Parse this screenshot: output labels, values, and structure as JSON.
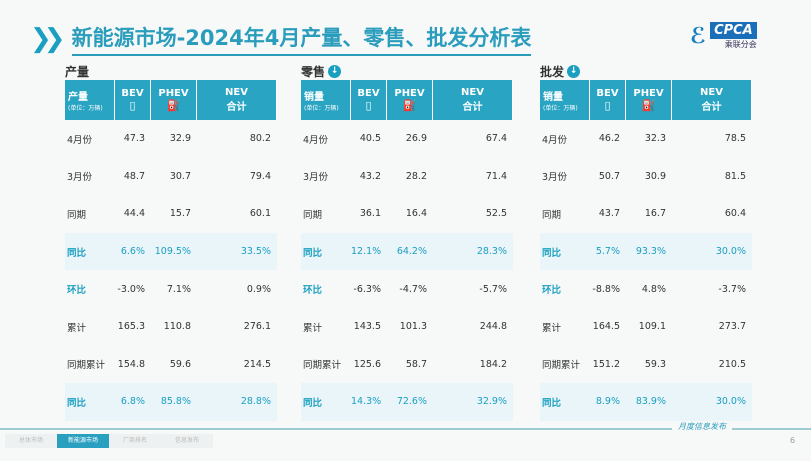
{
  "title": "新能源市场-2024年4月产量、零售、批发分析表",
  "logo": {
    "text": "CPCA",
    "sub": "乘联分会"
  },
  "tables": [
    {
      "title": "产量",
      "has_icon": false,
      "corner": "产量",
      "unit": "(单位：万辆)",
      "cols": [
        "BEV",
        "PHEV",
        "NEV"
      ],
      "nev_sub": "合计",
      "rows": [
        [
          "4月份",
          "47.3",
          "32.9",
          "80.2"
        ],
        [
          "3月份",
          "48.7",
          "30.7",
          "79.4"
        ],
        [
          "同期",
          "44.4",
          "15.7",
          "60.1"
        ],
        [
          "同比",
          "6.6%",
          "109.5%",
          "33.5%"
        ],
        [
          "环比",
          "-3.0%",
          "7.1%",
          "0.9%"
        ],
        [
          "累计",
          "165.3",
          "110.8",
          "276.1"
        ],
        [
          "同期累计",
          "154.8",
          "59.6",
          "214.5"
        ],
        [
          "同比",
          "6.8%",
          "85.8%",
          "28.8%"
        ]
      ]
    },
    {
      "title": "零售",
      "has_icon": true,
      "corner": "销量",
      "unit": "(单位：万辆)",
      "cols": [
        "BEV",
        "PHEV",
        "NEV"
      ],
      "nev_sub": "合计",
      "rows": [
        [
          "4月份",
          "40.5",
          "26.9",
          "67.4"
        ],
        [
          "3月份",
          "43.2",
          "28.2",
          "71.4"
        ],
        [
          "同期",
          "36.1",
          "16.4",
          "52.5"
        ],
        [
          "同比",
          "12.1%",
          "64.2%",
          "28.3%"
        ],
        [
          "环比",
          "-6.3%",
          "-4.7%",
          "-5.7%"
        ],
        [
          "累计",
          "143.5",
          "101.3",
          "244.8"
        ],
        [
          "同期累计",
          "125.6",
          "58.7",
          "184.2"
        ],
        [
          "同比",
          "14.3%",
          "72.6%",
          "32.9%"
        ]
      ]
    },
    {
      "title": "批发",
      "has_icon": true,
      "corner": "销量",
      "unit": "(单位：万辆)",
      "cols": [
        "BEV",
        "PHEV",
        "NEV"
      ],
      "nev_sub": "合计",
      "rows": [
        [
          "4月份",
          "46.2",
          "32.3",
          "78.5"
        ],
        [
          "3月份",
          "50.7",
          "30.9",
          "81.5"
        ],
        [
          "同期",
          "43.7",
          "16.7",
          "60.4"
        ],
        [
          "同比",
          "5.7%",
          "93.3%",
          "30.0%"
        ],
        [
          "环比",
          "-8.8%",
          "4.8%",
          "-3.7%"
        ],
        [
          "累计",
          "164.5",
          "109.1",
          "273.7"
        ],
        [
          "同期累计",
          "151.2",
          "59.3",
          "210.5"
        ],
        [
          "同比",
          "8.9%",
          "83.9%",
          "30.0%"
        ]
      ]
    }
  ],
  "footer": {
    "tabs": [
      "总体市场",
      "新能源市场",
      "厂商排名",
      "信息发布"
    ],
    "active_tab": 1,
    "text": "月度信息发布",
    "page": "6"
  }
}
